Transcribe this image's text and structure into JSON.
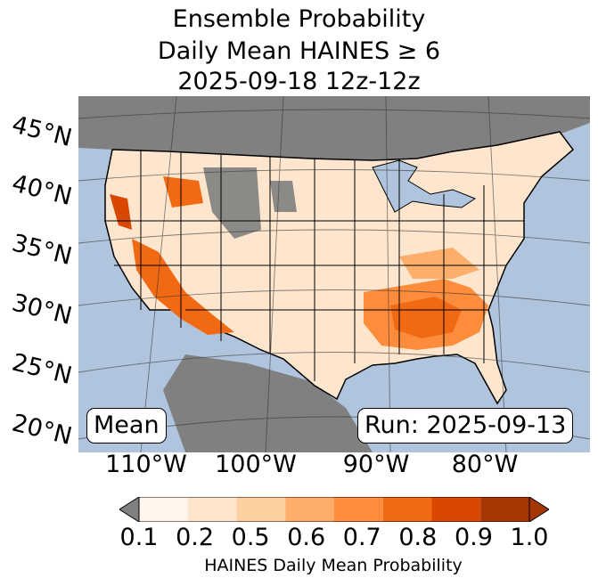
{
  "title": {
    "line1": "Ensemble Probability",
    "line2": "Daily Mean HAINES ≥ 6",
    "line3": "2025-09-18 12z-12z"
  },
  "map": {
    "lat_labels": [
      "45°N",
      "40°N",
      "35°N",
      "30°N",
      "25°N",
      "20°N"
    ],
    "lon_labels": [
      "110°W",
      "100°W",
      "90°W",
      "80°W"
    ],
    "mean_label": "Mean",
    "run_label": "Run: 2025-09-13",
    "colors": {
      "ocean": "#b0c4de",
      "missing": "#808080",
      "low": "#fdf0e0",
      "high": "#c84508"
    }
  },
  "colorbar": {
    "ticks": [
      "0.1",
      "0.2",
      "0.5",
      "0.6",
      "0.7",
      "0.8",
      "0.9",
      "1.0"
    ],
    "colors": [
      "#fff5eb",
      "#fee6ce",
      "#fdd0a2",
      "#fdae6b",
      "#fd8d3c",
      "#f16913",
      "#d94801",
      "#a63603"
    ],
    "under_color": "#808080",
    "label": "HAINES Daily Mean Probability"
  }
}
